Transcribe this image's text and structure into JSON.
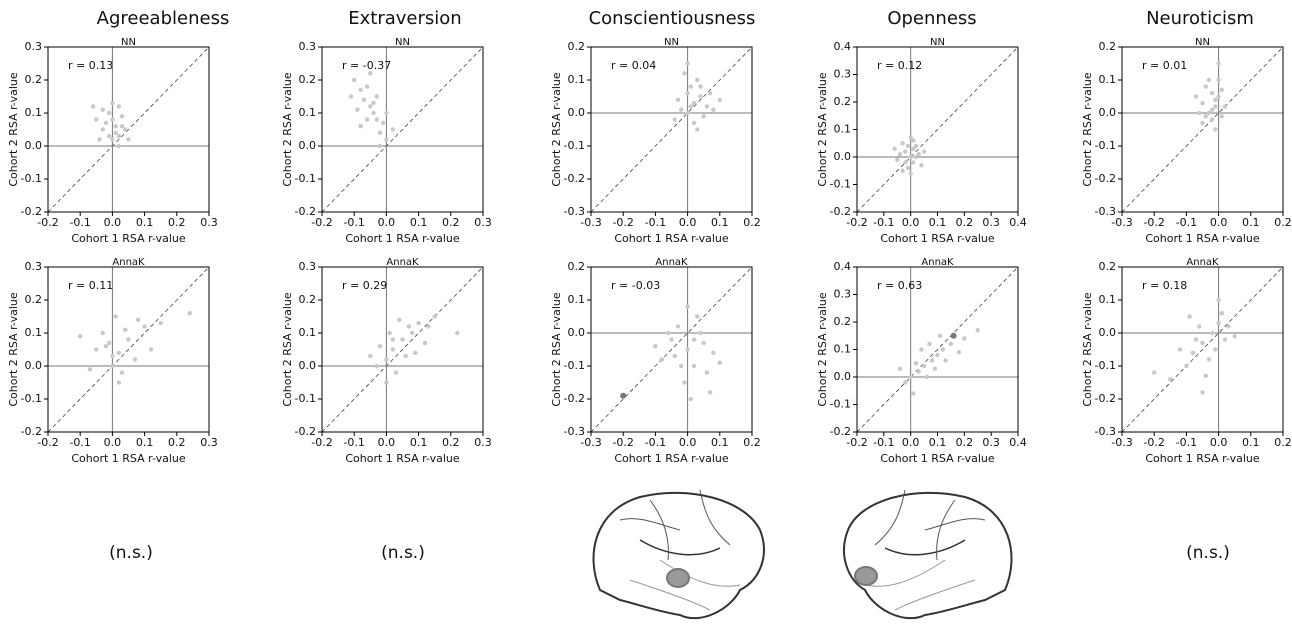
{
  "chart_data": [
    {
      "type": "scatter",
      "title": "Agreeableness",
      "subtitle": "NN",
      "annotation": "r = 0.13",
      "xlabel": "Cohort 1 RSA r-value",
      "ylabel": "Cohort 2 RSA r-value",
      "xlim": [
        -0.2,
        0.3
      ],
      "ylim": [
        -0.2,
        0.3
      ],
      "xticks": [
        -0.2,
        -0.1,
        {
          "value": 0,
          "label": "0.0"
        },
        0.1,
        0.2,
        0.3
      ],
      "yticks": [
        -0.2,
        -0.1,
        {
          "value": 0,
          "label": "0.0"
        },
        0.1,
        0.2,
        0.3
      ],
      "hline": 0,
      "vline": 0,
      "diagonal": true,
      "series": [
        {
          "color": "#c8c8c8",
          "x": [
            -0.03,
            0,
            0.02,
            -0.01,
            0.01,
            -0.04,
            0.03,
            0,
            -0.02,
            0.02,
            0.01,
            -0.03,
            0.04,
            -0.05,
            0,
            0.02,
            -0.01,
            0.03,
            -0.06,
            0.05
          ],
          "values": [
            0.05,
            0.08,
            0.03,
            0.1,
            0.06,
            0.02,
            0.09,
            0.13,
            0.07,
            0,
            0.04,
            0.11,
            0.05,
            0.08,
            0.02,
            0.12,
            0.03,
            0.06,
            0.12,
            0.02
          ]
        }
      ]
    },
    {
      "type": "scatter",
      "subtitle": "AnnaK",
      "annotation": "r = 0.11",
      "xlabel": "Cohort 1 RSA r-value",
      "ylabel": "Cohort 2 RSA r-value",
      "xlim": [
        -0.2,
        0.3
      ],
      "ylim": [
        -0.2,
        0.3
      ],
      "xticks": [
        -0.2,
        -0.1,
        {
          "value": 0,
          "label": "0.0"
        },
        0.1,
        0.2,
        0.3
      ],
      "yticks": [
        -0.2,
        -0.1,
        {
          "value": 0,
          "label": "0.0"
        },
        0.1,
        0.2,
        0.3
      ],
      "hline": 0,
      "vline": 0,
      "diagonal": true,
      "series": [
        {
          "color": "#c8c8c8",
          "x": [
            -0.1,
            -0.05,
            0,
            0.02,
            0.05,
            0.1,
            0.15,
            0.24,
            -0.02,
            0.03,
            0.07,
            -0.03,
            0.01,
            0.12,
            0.04,
            -0.07,
            0,
            0.08,
            0.02,
            -0.01
          ],
          "values": [
            0.09,
            0.05,
            0,
            0.04,
            0.08,
            0.12,
            0.13,
            0.16,
            0.06,
            -0.02,
            0.02,
            0.1,
            0.15,
            0.05,
            0.11,
            -0.01,
            0.03,
            0.14,
            -0.05,
            0.07
          ]
        }
      ]
    },
    {
      "type": "scatter",
      "title": "Extraversion",
      "subtitle": "NN",
      "annotation": "r = -0.37",
      "xlabel": "Cohort 1 RSA r-value",
      "ylabel": "Cohort 2 RSA r-value",
      "xlim": [
        -0.2,
        0.3
      ],
      "ylim": [
        -0.2,
        0.3
      ],
      "xticks": [
        -0.2,
        -0.1,
        {
          "value": 0,
          "label": "0.0"
        },
        0.1,
        0.2,
        0.3
      ],
      "yticks": [
        -0.2,
        -0.1,
        {
          "value": 0,
          "label": "0.0"
        },
        0.1,
        0.2,
        0.3
      ],
      "hline": 0,
      "vline": 0,
      "diagonal": true,
      "series": [
        {
          "color": "#c8c8c8",
          "x": [
            -0.1,
            -0.08,
            -0.05,
            -0.03,
            -0.02,
            0,
            -0.07,
            -0.04,
            -0.06,
            -0.09,
            -0.01,
            -0.05,
            -0.03,
            -0.02,
            0.02,
            -0.11,
            -0.06,
            -0.04,
            0,
            -0.08
          ],
          "values": [
            0.2,
            0.17,
            0.12,
            0.08,
            0.04,
            0.02,
            0.14,
            0.1,
            0.18,
            0.11,
            0.07,
            0.22,
            0.15,
            0,
            0.05,
            0.15,
            0.08,
            0.13,
            0.1,
            0.06
          ]
        }
      ]
    },
    {
      "type": "scatter",
      "subtitle": "AnnaK",
      "annotation": "r = 0.29",
      "xlabel": "Cohort 1 RSA r-value",
      "ylabel": "Cohort 2 RSA r-value",
      "xlim": [
        -0.2,
        0.3
      ],
      "ylim": [
        -0.2,
        0.3
      ],
      "xticks": [
        -0.2,
        -0.1,
        {
          "value": 0,
          "label": "0.0"
        },
        0.1,
        0.2,
        0.3
      ],
      "yticks": [
        -0.2,
        -0.1,
        {
          "value": 0,
          "label": "0.0"
        },
        0.1,
        0.2,
        0.3
      ],
      "hline": 0,
      "vline": 0,
      "diagonal": true,
      "series": [
        {
          "color": "#c8c8c8",
          "x": [
            -0.03,
            0,
            0.02,
            0.05,
            0.08,
            0.1,
            0.13,
            0.22,
            -0.05,
            0.03,
            0.06,
            0.01,
            0.04,
            0.12,
            0.15,
            -0.02,
            0,
            0.09,
            0.07,
            0.02
          ],
          "values": [
            0,
            0.02,
            0.05,
            0.08,
            0.1,
            0.13,
            0.12,
            0.1,
            0.03,
            -0.02,
            0.03,
            0.1,
            0.14,
            0.07,
            0.15,
            0.06,
            -0.05,
            0.04,
            0.12,
            0.08
          ]
        }
      ]
    },
    {
      "type": "scatter",
      "title": "Conscientiousness",
      "subtitle": "NN",
      "annotation": "r = 0.04",
      "xlabel": "Cohort 1 RSA r-value",
      "ylabel": "Cohort 2 RSA r-value",
      "xlim": [
        -0.3,
        0.2
      ],
      "ylim": [
        -0.3,
        0.2
      ],
      "xticks": [
        -0.3,
        -0.2,
        -0.1,
        {
          "value": 0,
          "label": "0.0"
        },
        0.1,
        0.2
      ],
      "yticks": [
        -0.3,
        -0.2,
        -0.1,
        {
          "value": 0,
          "label": "0.0"
        },
        0.1,
        0.2
      ],
      "hline": 0,
      "vline": 0,
      "diagonal": true,
      "series": [
        {
          "color": "#c8c8c8",
          "x": [
            0,
            0.02,
            0.04,
            -0.02,
            0.05,
            0.01,
            0.03,
            -0.03,
            0.06,
            0,
            0.08,
            0.02,
            -0.01,
            0.04,
            0.1,
            -0.04,
            0.07,
            0.01,
            0.03,
            0
          ],
          "values": [
            0,
            0.03,
            0.05,
            0.01,
            -0.01,
            0.08,
            0.1,
            0.04,
            0.02,
            0.06,
            0.01,
            -0.03,
            0.12,
            0.08,
            0.04,
            -0.02,
            0.06,
            0.02,
            -0.05,
            0.15
          ]
        }
      ]
    },
    {
      "type": "scatter",
      "subtitle": "AnnaK",
      "annotation": "r = -0.03",
      "xlabel": "Cohort 1 RSA r-value",
      "ylabel": "Cohort 2 RSA r-value",
      "xlim": [
        -0.3,
        0.2
      ],
      "ylim": [
        -0.3,
        0.2
      ],
      "xticks": [
        -0.3,
        -0.2,
        -0.1,
        {
          "value": 0,
          "label": "0.0"
        },
        0.1,
        0.2
      ],
      "yticks": [
        -0.3,
        -0.2,
        -0.1,
        {
          "value": 0,
          "label": "0.0"
        },
        0.1,
        0.2
      ],
      "hline": 0,
      "vline": 0,
      "diagonal": true,
      "series": [
        {
          "color": "#c8c8c8",
          "x": [
            -0.05,
            0,
            0.02,
            -0.03,
            0.05,
            -0.08,
            0.03,
            -0.01,
            0.06,
            -0.06,
            0.01,
            0.08,
            -0.02,
            0,
            0.04,
            -0.1,
            0.07,
            -0.04,
            0.02,
            0.1
          ],
          "values": [
            -0.02,
            -0.05,
            -0.1,
            0.02,
            -0.03,
            -0.08,
            0.05,
            -0.15,
            -0.12,
            0,
            -0.2,
            -0.06,
            -0.1,
            0.08,
            0,
            -0.04,
            -0.18,
            -0.07,
            -0.02,
            -0.09
          ]
        },
        {
          "color": "#777777",
          "x": [
            -0.2
          ],
          "values": [
            -0.19
          ]
        }
      ]
    },
    {
      "type": "scatter",
      "title": "Openness",
      "subtitle": "NN",
      "annotation": "r = 0.12",
      "xlabel": "Cohort 1 RSA r-value",
      "ylabel": "Cohort 2 RSA r-value",
      "xlim": [
        -0.2,
        0.4
      ],
      "ylim": [
        -0.2,
        0.4
      ],
      "xticks": [
        -0.2,
        -0.1,
        {
          "value": 0,
          "label": "0.0"
        },
        0.1,
        0.2,
        0.3,
        0.4
      ],
      "yticks": [
        -0.2,
        -0.1,
        {
          "value": 0,
          "label": "0.0"
        },
        0.1,
        0.2,
        0.3,
        0.4
      ],
      "hline": 0,
      "vline": 0,
      "diagonal": true,
      "series": [
        {
          "color": "#c8c8c8",
          "x": [
            0,
            -0.02,
            0.01,
            -0.04,
            0.02,
            -0.01,
            0.03,
            -0.03,
            0,
            -0.05,
            0.01,
            -0.02,
            0.04,
            -0.06,
            0,
            0.02,
            -0.01,
            0.05,
            -0.03,
            0.01
          ],
          "values": [
            0,
            0.02,
            -0.02,
            0.01,
            0.04,
            -0.04,
            0.01,
            0.05,
            0.07,
            -0.01,
            0.03,
            -0.02,
            -0.03,
            0.03,
            -0.06,
            0,
            0.04,
            0.02,
            -0.05,
            0.06
          ]
        }
      ]
    },
    {
      "type": "scatter",
      "subtitle": "AnnaK",
      "annotation": "r = 0.63",
      "xlabel": "Cohort 1 RSA r-value",
      "ylabel": "Cohort 2 RSA r-value",
      "xlim": [
        -0.2,
        0.4
      ],
      "ylim": [
        -0.2,
        0.4
      ],
      "xticks": [
        -0.2,
        -0.1,
        {
          "value": 0,
          "label": "0.0"
        },
        0.1,
        0.2,
        0.3,
        0.4
      ],
      "yticks": [
        -0.2,
        -0.1,
        {
          "value": 0,
          "label": "0.0"
        },
        0.1,
        0.2,
        0.3,
        0.4
      ],
      "hline": 0,
      "vline": 0,
      "diagonal": true,
      "series": [
        {
          "color": "#c8c8c8",
          "x": [
            0,
            0.03,
            0.05,
            0.08,
            0.1,
            0.12,
            0.15,
            0.2,
            0.25,
            0.02,
            0.06,
            -0.02,
            0.04,
            0.09,
            0.13,
            0.18,
            0.01,
            0.07,
            -0.04,
            0.11
          ],
          "values": [
            0,
            0.02,
            0.04,
            0.06,
            0.08,
            0.1,
            0.12,
            0.14,
            0.17,
            0.05,
            0,
            -0.02,
            0.1,
            0.03,
            0.06,
            0.09,
            -0.06,
            0.12,
            0.03,
            0.15
          ]
        },
        {
          "color": "#777777",
          "x": [
            0.16
          ],
          "values": [
            0.15
          ]
        }
      ]
    },
    {
      "type": "scatter",
      "title": "Neuroticism",
      "subtitle": "NN",
      "annotation": "r = 0.01",
      "xlabel": "Cohort 1 RSA r-value",
      "ylabel": "Cohort 2 RSA r-value",
      "xlim": [
        -0.3,
        0.2
      ],
      "ylim": [
        -0.3,
        0.2
      ],
      "xticks": [
        -0.3,
        -0.2,
        -0.1,
        {
          "value": 0,
          "label": "0.0"
        },
        0.1,
        0.2
      ],
      "yticks": [
        -0.3,
        -0.2,
        -0.1,
        {
          "value": 0,
          "label": "0.0"
        },
        0.1,
        0.2
      ],
      "hline": 0,
      "vline": 0,
      "diagonal": true,
      "series": [
        {
          "color": "#c8c8c8",
          "x": [
            -0.03,
            -0.01,
            0,
            -0.05,
            -0.02,
            0.01,
            -0.04,
            -0.02,
            0,
            -0.06,
            -0.01,
            -0.03,
            0.02,
            -0.05,
            0,
            -0.02,
            -0.07,
            0.01,
            -0.04,
            -0.01
          ],
          "values": [
            0,
            0.02,
            0.05,
            0.03,
            0.06,
            -0.01,
            0.08,
            -0.02,
            0.1,
            0,
            0.04,
            0.1,
            0.02,
            -0.03,
            0.15,
            0.01,
            0.05,
            0.07,
            -0.01,
            -0.05
          ]
        }
      ]
    },
    {
      "type": "scatter",
      "subtitle": "AnnaK",
      "annotation": "r = 0.18",
      "xlabel": "Cohort 1 RSA r-value",
      "ylabel": "Cohort 2 RSA r-value",
      "xlim": [
        -0.3,
        0.2
      ],
      "ylim": [
        -0.3,
        0.2
      ],
      "xticks": [
        -0.3,
        -0.2,
        -0.1,
        {
          "value": 0,
          "label": "0.0"
        },
        0.1,
        0.2
      ],
      "yticks": [
        -0.3,
        -0.2,
        -0.1,
        {
          "value": 0,
          "label": "0.0"
        },
        0.1,
        0.2
      ],
      "hline": 0,
      "vline": 0,
      "diagonal": true,
      "series": [
        {
          "color": "#c8c8c8",
          "x": [
            -0.05,
            -0.02,
            0,
            -0.08,
            -0.1,
            -0.03,
            0.02,
            -0.06,
            -0.12,
            0.01,
            -0.04,
            -0.07,
            0.03,
            -0.15,
            -0.01,
            -0.09,
            0,
            -0.2,
            -0.05,
            0.05
          ],
          "values": [
            -0.03,
            0,
            0.03,
            -0.06,
            -0.1,
            -0.08,
            -0.02,
            0.02,
            -0.05,
            0.06,
            -0.13,
            -0.02,
            0.02,
            -0.14,
            -0.05,
            0.05,
            0.1,
            -0.12,
            -0.18,
            -0.01
          ]
        }
      ]
    }
  ],
  "footnotes": [
    "(n.s.)",
    "(n.s.)",
    "(n.s.)"
  ]
}
